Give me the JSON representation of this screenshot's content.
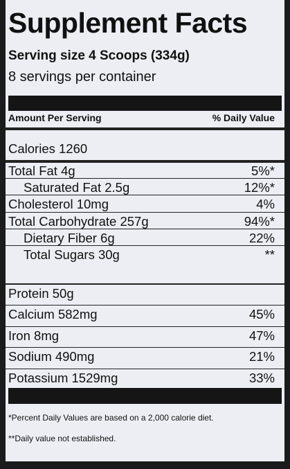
{
  "header": {
    "title": "Supplement Facts",
    "serving_size": "Serving size 4 Scoops (334g)",
    "servings": "8 servings per container"
  },
  "table_header": {
    "left": "Amount Per Serving",
    "right": "% Daily Value"
  },
  "calories": {
    "name": "Calories",
    "amount": "1260"
  },
  "nutrients": [
    {
      "name": "Total Fat",
      "amount": "4g",
      "dv": "5%*",
      "sub": false
    },
    {
      "name": "Saturated Fat",
      "amount": "2.5g",
      "dv": "12%*",
      "sub": true
    },
    {
      "name": "Cholesterol",
      "amount": "10mg",
      "dv": "4%",
      "sub": false
    },
    {
      "name": "Total Carbohydrate",
      "amount": "257g",
      "dv": "94%*",
      "sub": false
    },
    {
      "name": "Dietary Fiber",
      "amount": "6g",
      "dv": "22%",
      "sub": true
    },
    {
      "name": "Total Sugars",
      "amount": "30g",
      "dv": "**",
      "sub": true
    }
  ],
  "minerals": [
    {
      "name": "Protein",
      "amount": "50g",
      "sub": false
    },
    {
      "name": "Calcium",
      "amount": "582mg",
      "dv": "45%",
      "sub": false
    },
    {
      "name": "Iron",
      "amount": "8mg",
      "dv": "47%",
      "sub": false
    },
    {
      "name": "Sodium",
      "amount": "490mg",
      "dv": "21%",
      "sub": false
    },
    {
      "name": "Potassium",
      "amount": "1529mg",
      "dv": "33%",
      "sub": false
    }
  ],
  "footnotes": [
    "*Percent Daily Values are based on a 2,000 calorie diet.",
    "**Daily value not established."
  ]
}
